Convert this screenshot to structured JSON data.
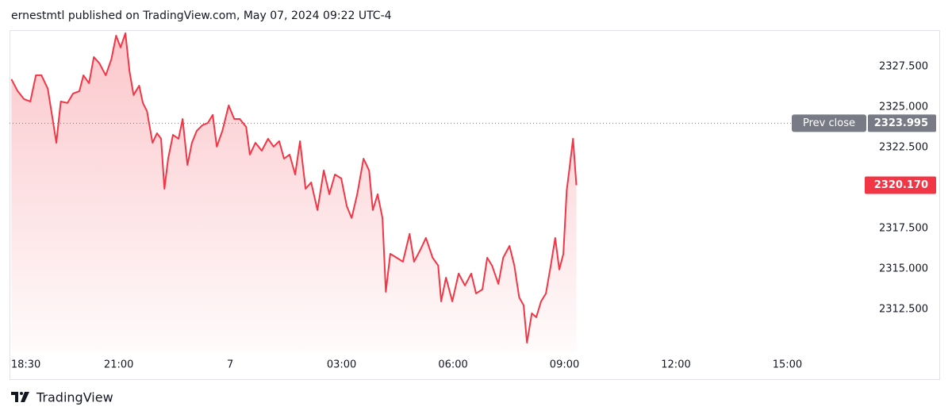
{
  "header": {
    "text": "ernestmtl published on TradingView.com, May 07, 2024 09:22 UTC-4"
  },
  "footer": {
    "brand": "TradingView"
  },
  "chart_data": {
    "type": "area",
    "color": "#f23645",
    "x": [
      -5.89,
      -5.72,
      -5.55,
      -5.38,
      -5.23,
      -5.08,
      -4.91,
      -4.78,
      -4.68,
      -4.56,
      -4.38,
      -4.23,
      -4.06,
      -3.95,
      -3.8,
      -3.67,
      -3.52,
      -3.35,
      -3.2,
      -3.07,
      -2.95,
      -2.82,
      -2.71,
      -2.6,
      -2.45,
      -2.35,
      -2.24,
      -2.09,
      -1.97,
      -1.86,
      -1.77,
      -1.67,
      -1.54,
      -1.39,
      -1.28,
      -1.15,
      -1.03,
      -0.9,
      -0.75,
      -0.6,
      -0.47,
      -0.36,
      -0.21,
      -0.04,
      0.11,
      0.26,
      0.43,
      0.53,
      0.68,
      0.85,
      1.02,
      1.17,
      1.32,
      1.45,
      1.6,
      1.75,
      1.88,
      2.03,
      2.18,
      2.35,
      2.52,
      2.67,
      2.82,
      2.99,
      3.14,
      3.27,
      3.42,
      3.59,
      3.74,
      3.84,
      3.97,
      4.1,
      4.19,
      4.31,
      4.48,
      4.65,
      4.83,
      4.95,
      5.12,
      5.27,
      5.45,
      5.6,
      5.68,
      5.81,
      5.98,
      6.15,
      6.32,
      6.49,
      6.62,
      6.79,
      6.92,
      7.05,
      7.22,
      7.35,
      7.52,
      7.65,
      7.78,
      7.9,
      7.99,
      8.12,
      8.24,
      8.37,
      8.5,
      8.63,
      8.75,
      8.86,
      8.97,
      9.06,
      9.14,
      9.23,
      9.32
    ],
    "values": [
      2326.72,
      2325.98,
      2325.49,
      2325.34,
      2326.96,
      2326.96,
      2326.13,
      2324.26,
      2322.79,
      2325.34,
      2325.25,
      2325.83,
      2325.98,
      2326.96,
      2326.47,
      2328.09,
      2327.7,
      2326.96,
      2327.94,
      2329.41,
      2328.68,
      2329.56,
      2327.21,
      2325.74,
      2326.32,
      2325.25,
      2324.75,
      2322.79,
      2323.38,
      2323.04,
      2319.95,
      2321.81,
      2323.28,
      2323.04,
      2324.26,
      2321.42,
      2322.79,
      2323.53,
      2323.87,
      2324.02,
      2324.51,
      2322.55,
      2323.53,
      2325.1,
      2324.26,
      2324.26,
      2323.77,
      2322.06,
      2322.79,
      2322.3,
      2323.04,
      2322.55,
      2322.89,
      2321.81,
      2322.06,
      2320.83,
      2322.89,
      2319.95,
      2320.34,
      2318.63,
      2321.08,
      2319.61,
      2320.83,
      2320.59,
      2318.87,
      2318.14,
      2319.61,
      2321.81,
      2321.08,
      2318.63,
      2319.61,
      2318.14,
      2313.58,
      2315.93,
      2315.69,
      2315.44,
      2317.16,
      2315.44,
      2316.18,
      2316.91,
      2315.69,
      2315.2,
      2312.99,
      2314.46,
      2312.99,
      2314.71,
      2313.97,
      2314.71,
      2313.48,
      2313.73,
      2315.69,
      2315.2,
      2314.07,
      2315.69,
      2316.42,
      2315.2,
      2313.24,
      2312.75,
      2310.44,
      2312.25,
      2312.01,
      2312.99,
      2313.48,
      2315.2,
      2316.91,
      2314.96,
      2315.93,
      2319.85,
      2321.32,
      2323.04,
      2320.17
    ],
    "xlim": [
      -5.94,
      17.04
    ],
    "xticks": [
      {
        "value": -5.5,
        "label": "18:30"
      },
      {
        "value": -3,
        "label": "21:00"
      },
      {
        "value": 0,
        "label": "7"
      },
      {
        "value": 3,
        "label": "03:00"
      },
      {
        "value": 6,
        "label": "06:00"
      },
      {
        "value": 9,
        "label": "09:00"
      },
      {
        "value": 12,
        "label": "12:00"
      },
      {
        "value": 15,
        "label": "15:00"
      }
    ],
    "ylim": [
      2309.9,
      2329.75
    ],
    "yticks": [
      {
        "value": 2312.5,
        "label": "2312.500"
      },
      {
        "value": 2315,
        "label": "2315.000"
      },
      {
        "value": 2317.5,
        "label": "2317.500"
      },
      {
        "value": 2322.5,
        "label": "2322.500"
      },
      {
        "value": 2325,
        "label": "2325.000"
      },
      {
        "value": 2327.5,
        "label": "2327.500"
      }
    ],
    "prev_close": {
      "name": "Prev close",
      "value": 2323.995,
      "label": "2323.995",
      "color": "#787b86"
    },
    "last_price": {
      "value": 2320.17,
      "label": "2320.170"
    }
  }
}
